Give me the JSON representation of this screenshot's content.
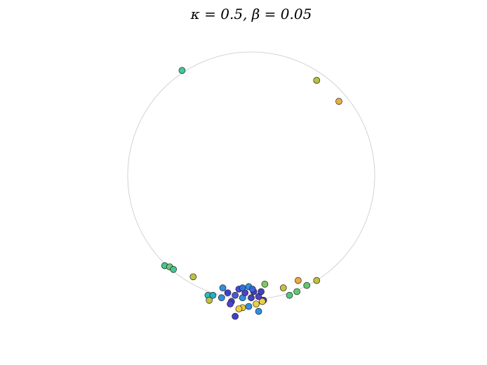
{
  "chart_data": {
    "type": "scatter",
    "title": "κ = 0.5, β = 0.05",
    "xlim": [
      -1.25,
      1.25
    ],
    "ylim": [
      -1.25,
      1.25
    ],
    "x": [
      -0.56,
      0.53,
      0.71,
      -0.7,
      -0.66,
      -0.63,
      -0.47,
      0.26,
      0.38,
      0.53,
      0.45,
      0.37,
      0.31,
      0.11,
      -0.35,
      -0.34,
      -0.31,
      -0.23,
      -0.24,
      -0.19,
      -0.16,
      -0.13,
      -0.1,
      -0.07,
      -0.05,
      -0.02,
      0,
      0.02,
      0.06,
      0.08,
      0.1,
      0.04,
      0.09,
      -0.07,
      -0.1,
      -0.13,
      0.06,
      -0.02,
      -0.17,
      0.01,
      -0.07
    ],
    "series": [
      {
        "values": [
          0.85,
          0.77,
          0.6,
          -0.73,
          -0.74,
          -0.76,
          -0.82,
          -0.91,
          -0.85,
          -0.85,
          -0.89,
          -0.94,
          -0.97,
          -0.88,
          -0.97,
          -1.01,
          -0.97,
          -0.91,
          -0.99,
          -0.95,
          -1.02,
          -0.97,
          -0.92,
          -0.99,
          -0.95,
          -0.9,
          -0.99,
          -0.94,
          -0.98,
          -0.94,
          -1.01,
          -1.04,
          -1.02,
          -1.07,
          -1.08,
          -1.14,
          -1.1,
          -1.06,
          -1.04,
          -0.92,
          -0.91
        ],
        "colors": [
          "#40c8a0",
          "#b8c040",
          "#e8b040",
          "#40c890",
          "#70c870",
          "#40c890",
          "#c0c040",
          "#c8c040",
          "#f0a840",
          "#c0c040",
          "#60c870",
          "#60c870",
          "#50c880",
          "#80c860",
          "#30b8c0",
          "#c0c040",
          "#20b0c8",
          "#3090e0",
          "#3090e0",
          "#4040d0",
          "#4040d0",
          "#4858e0",
          "#4848d8",
          "#3090e0",
          "#5040d0",
          "#3090e0",
          "#4040c8",
          "#4040d0",
          "#5040c8",
          "#4040c0",
          "#4838c0",
          "#e8d040",
          "#e8d040",
          "#e8c840",
          "#f0d040",
          "#4040d0",
          "#3090e0",
          "#3090e0",
          "#5040d0",
          "#4060d8",
          "#3070e0"
        ]
      }
    ]
  }
}
